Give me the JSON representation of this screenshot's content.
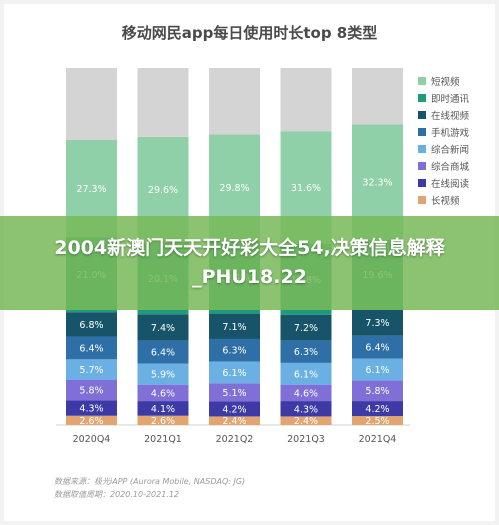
{
  "banner": {
    "text": "2004新澳门天天开好彩大全54,决策信息解释_PHU18.22"
  },
  "source": {
    "line1": "数据来源：极光iAPP (Aurora Mobile, NASDAQ: JG)",
    "line2": "数据取值周期：2020.10-2021.12"
  },
  "chart_data": {
    "type": "bar",
    "stacked": true,
    "title": "移动网民app每日使用时长top 8类型",
    "categories": [
      "2020Q4",
      "2021Q1",
      "2021Q2",
      "2021Q3",
      "2021Q4"
    ],
    "ylim": [
      0,
      100
    ],
    "legend_position": "right",
    "series": [
      {
        "name": "长视频",
        "color": "#e3a56f",
        "values": [
          2.6,
          2.6,
          2.4,
          2.4,
          2.5
        ],
        "labels": [
          "2.6%",
          "2.6%",
          "2.4%",
          "2.4%",
          "2.5%"
        ]
      },
      {
        "name": "在线阅读",
        "color": "#3d3aa6",
        "values": [
          4.3,
          4.1,
          4.2,
          4.3,
          4.2
        ],
        "labels": [
          "4.3%",
          "4.1%",
          "4.2%",
          "4.3%",
          "4.2%"
        ]
      },
      {
        "name": "综合商城",
        "color": "#7f6fd6",
        "values": [
          5.8,
          4.6,
          5.1,
          4.6,
          5.8
        ],
        "labels": [
          "5.8%",
          "4.6%",
          "5.1%",
          "4.6%",
          "5.8%"
        ]
      },
      {
        "name": "综合新闻",
        "color": "#6ab0e3",
        "values": [
          5.7,
          5.9,
          6.1,
          6.1,
          6.1
        ],
        "labels": [
          "5.7%",
          "5.9%",
          "6.1%",
          "6.1%",
          "6.1%"
        ]
      },
      {
        "name": "手机游戏",
        "color": "#2f6fa8",
        "values": [
          6.4,
          6.4,
          6.3,
          6.3,
          6.4
        ],
        "labels": [
          "6.4%",
          "6.4%",
          "6.3%",
          "6.3%",
          "6.4%"
        ]
      },
      {
        "name": "在线视频",
        "color": "#17546a",
        "values": [
          6.8,
          7.4,
          7.1,
          7.2,
          7.3
        ],
        "labels": [
          "6.8%",
          "7.4%",
          "7.1%",
          "7.2%",
          "7.3%"
        ]
      },
      {
        "name": "即时通讯",
        "color": "#1f9b7b",
        "values": [
          21.0,
          20.1,
          20.4,
          19.8,
          19.6
        ],
        "labels": [
          "21.0%",
          "20.1%",
          "20.4%",
          "19.8%",
          "19.6%"
        ]
      },
      {
        "name": "短视频",
        "color": "#8fd0a8",
        "values": [
          27.3,
          29.6,
          29.8,
          31.6,
          32.3
        ],
        "labels": [
          "27.3%",
          "29.6%",
          "29.8%",
          "31.6%",
          "32.3%"
        ]
      }
    ],
    "other_color": "#d4d4d4"
  }
}
